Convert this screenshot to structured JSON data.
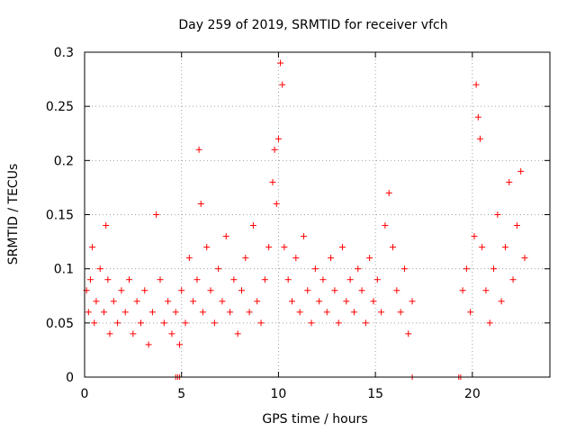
{
  "chart_data": {
    "type": "scatter",
    "title": "Day 259 of 2019, SRMTID for receiver vfch",
    "xlabel": "GPS time / hours",
    "ylabel": "SRMTID / TECUs",
    "xlim": [
      0,
      24
    ],
    "ylim": [
      0,
      0.3
    ],
    "xticks": [
      0,
      5,
      10,
      15,
      20
    ],
    "xtick_labels": [
      "0",
      "5",
      "10",
      "15",
      "20"
    ],
    "yticks": [
      0,
      0.05,
      0.1,
      0.15,
      0.2,
      0.25,
      0.3
    ],
    "ytick_labels": [
      "0",
      "0.05",
      "0.1",
      "0.15",
      "0.2",
      "0.25",
      "0.3"
    ],
    "grid": true,
    "marker": "+",
    "color": "#ff0000",
    "series": [
      {
        "name": "SRMTID",
        "points": [
          [
            0.1,
            0.08
          ],
          [
            0.2,
            0.06
          ],
          [
            0.3,
            0.09
          ],
          [
            0.4,
            0.12
          ],
          [
            0.5,
            0.05
          ],
          [
            0.6,
            0.07
          ],
          [
            0.8,
            0.1
          ],
          [
            1.0,
            0.06
          ],
          [
            1.1,
            0.14
          ],
          [
            1.2,
            0.09
          ],
          [
            1.3,
            0.04
          ],
          [
            1.5,
            0.07
          ],
          [
            1.7,
            0.05
          ],
          [
            1.9,
            0.08
          ],
          [
            2.1,
            0.06
          ],
          [
            2.3,
            0.09
          ],
          [
            2.5,
            0.04
          ],
          [
            2.7,
            0.07
          ],
          [
            2.9,
            0.05
          ],
          [
            3.1,
            0.08
          ],
          [
            3.3,
            0.03
          ],
          [
            3.5,
            0.06
          ],
          [
            3.7,
            0.15
          ],
          [
            3.9,
            0.09
          ],
          [
            4.1,
            0.05
          ],
          [
            4.3,
            0.07
          ],
          [
            4.5,
            0.04
          ],
          [
            4.7,
            0.06
          ],
          [
            4.9,
            0.03
          ],
          [
            5.0,
            0.08
          ],
          [
            5.2,
            0.05
          ],
          [
            5.4,
            0.11
          ],
          [
            5.6,
            0.07
          ],
          [
            5.8,
            0.09
          ],
          [
            5.9,
            0.21
          ],
          [
            6.0,
            0.16
          ],
          [
            6.1,
            0.06
          ],
          [
            6.3,
            0.12
          ],
          [
            6.5,
            0.08
          ],
          [
            6.7,
            0.05
          ],
          [
            6.9,
            0.1
          ],
          [
            7.1,
            0.07
          ],
          [
            7.3,
            0.13
          ],
          [
            7.5,
            0.06
          ],
          [
            7.7,
            0.09
          ],
          [
            7.9,
            0.04
          ],
          [
            8.1,
            0.08
          ],
          [
            8.3,
            0.11
          ],
          [
            8.5,
            0.06
          ],
          [
            8.7,
            0.14
          ],
          [
            8.9,
            0.07
          ],
          [
            9.1,
            0.05
          ],
          [
            9.3,
            0.09
          ],
          [
            9.5,
            0.12
          ],
          [
            9.7,
            0.18
          ],
          [
            9.8,
            0.21
          ],
          [
            9.9,
            0.16
          ],
          [
            10.0,
            0.22
          ],
          [
            10.1,
            0.29
          ],
          [
            10.2,
            0.27
          ],
          [
            10.3,
            0.12
          ],
          [
            10.5,
            0.09
          ],
          [
            10.7,
            0.07
          ],
          [
            10.9,
            0.11
          ],
          [
            11.1,
            0.06
          ],
          [
            11.3,
            0.13
          ],
          [
            11.5,
            0.08
          ],
          [
            11.7,
            0.05
          ],
          [
            11.9,
            0.1
          ],
          [
            12.1,
            0.07
          ],
          [
            12.3,
            0.09
          ],
          [
            12.5,
            0.06
          ],
          [
            12.7,
            0.11
          ],
          [
            12.9,
            0.08
          ],
          [
            13.1,
            0.05
          ],
          [
            13.3,
            0.12
          ],
          [
            13.5,
            0.07
          ],
          [
            13.7,
            0.09
          ],
          [
            13.9,
            0.06
          ],
          [
            14.1,
            0.1
          ],
          [
            14.3,
            0.08
          ],
          [
            14.5,
            0.05
          ],
          [
            14.7,
            0.11
          ],
          [
            14.9,
            0.07
          ],
          [
            15.1,
            0.09
          ],
          [
            15.3,
            0.06
          ],
          [
            15.5,
            0.14
          ],
          [
            15.7,
            0.17
          ],
          [
            15.9,
            0.12
          ],
          [
            16.1,
            0.08
          ],
          [
            16.3,
            0.06
          ],
          [
            16.5,
            0.1
          ],
          [
            16.7,
            0.04
          ],
          [
            16.9,
            0.07
          ],
          [
            19.5,
            0.08
          ],
          [
            19.7,
            0.1
          ],
          [
            19.9,
            0.06
          ],
          [
            20.1,
            0.13
          ],
          [
            20.2,
            0.27
          ],
          [
            20.3,
            0.24
          ],
          [
            20.4,
            0.22
          ],
          [
            20.5,
            0.12
          ],
          [
            20.7,
            0.08
          ],
          [
            20.9,
            0.05
          ],
          [
            21.1,
            0.1
          ],
          [
            21.3,
            0.15
          ],
          [
            21.5,
            0.07
          ],
          [
            21.7,
            0.12
          ],
          [
            21.9,
            0.18
          ],
          [
            22.1,
            0.09
          ],
          [
            22.3,
            0.14
          ],
          [
            22.5,
            0.19
          ],
          [
            22.7,
            0.11
          ]
        ]
      }
    ],
    "zero_markers_x": [
      4.7,
      4.8,
      4.9,
      16.9,
      19.3,
      19.4
    ]
  }
}
